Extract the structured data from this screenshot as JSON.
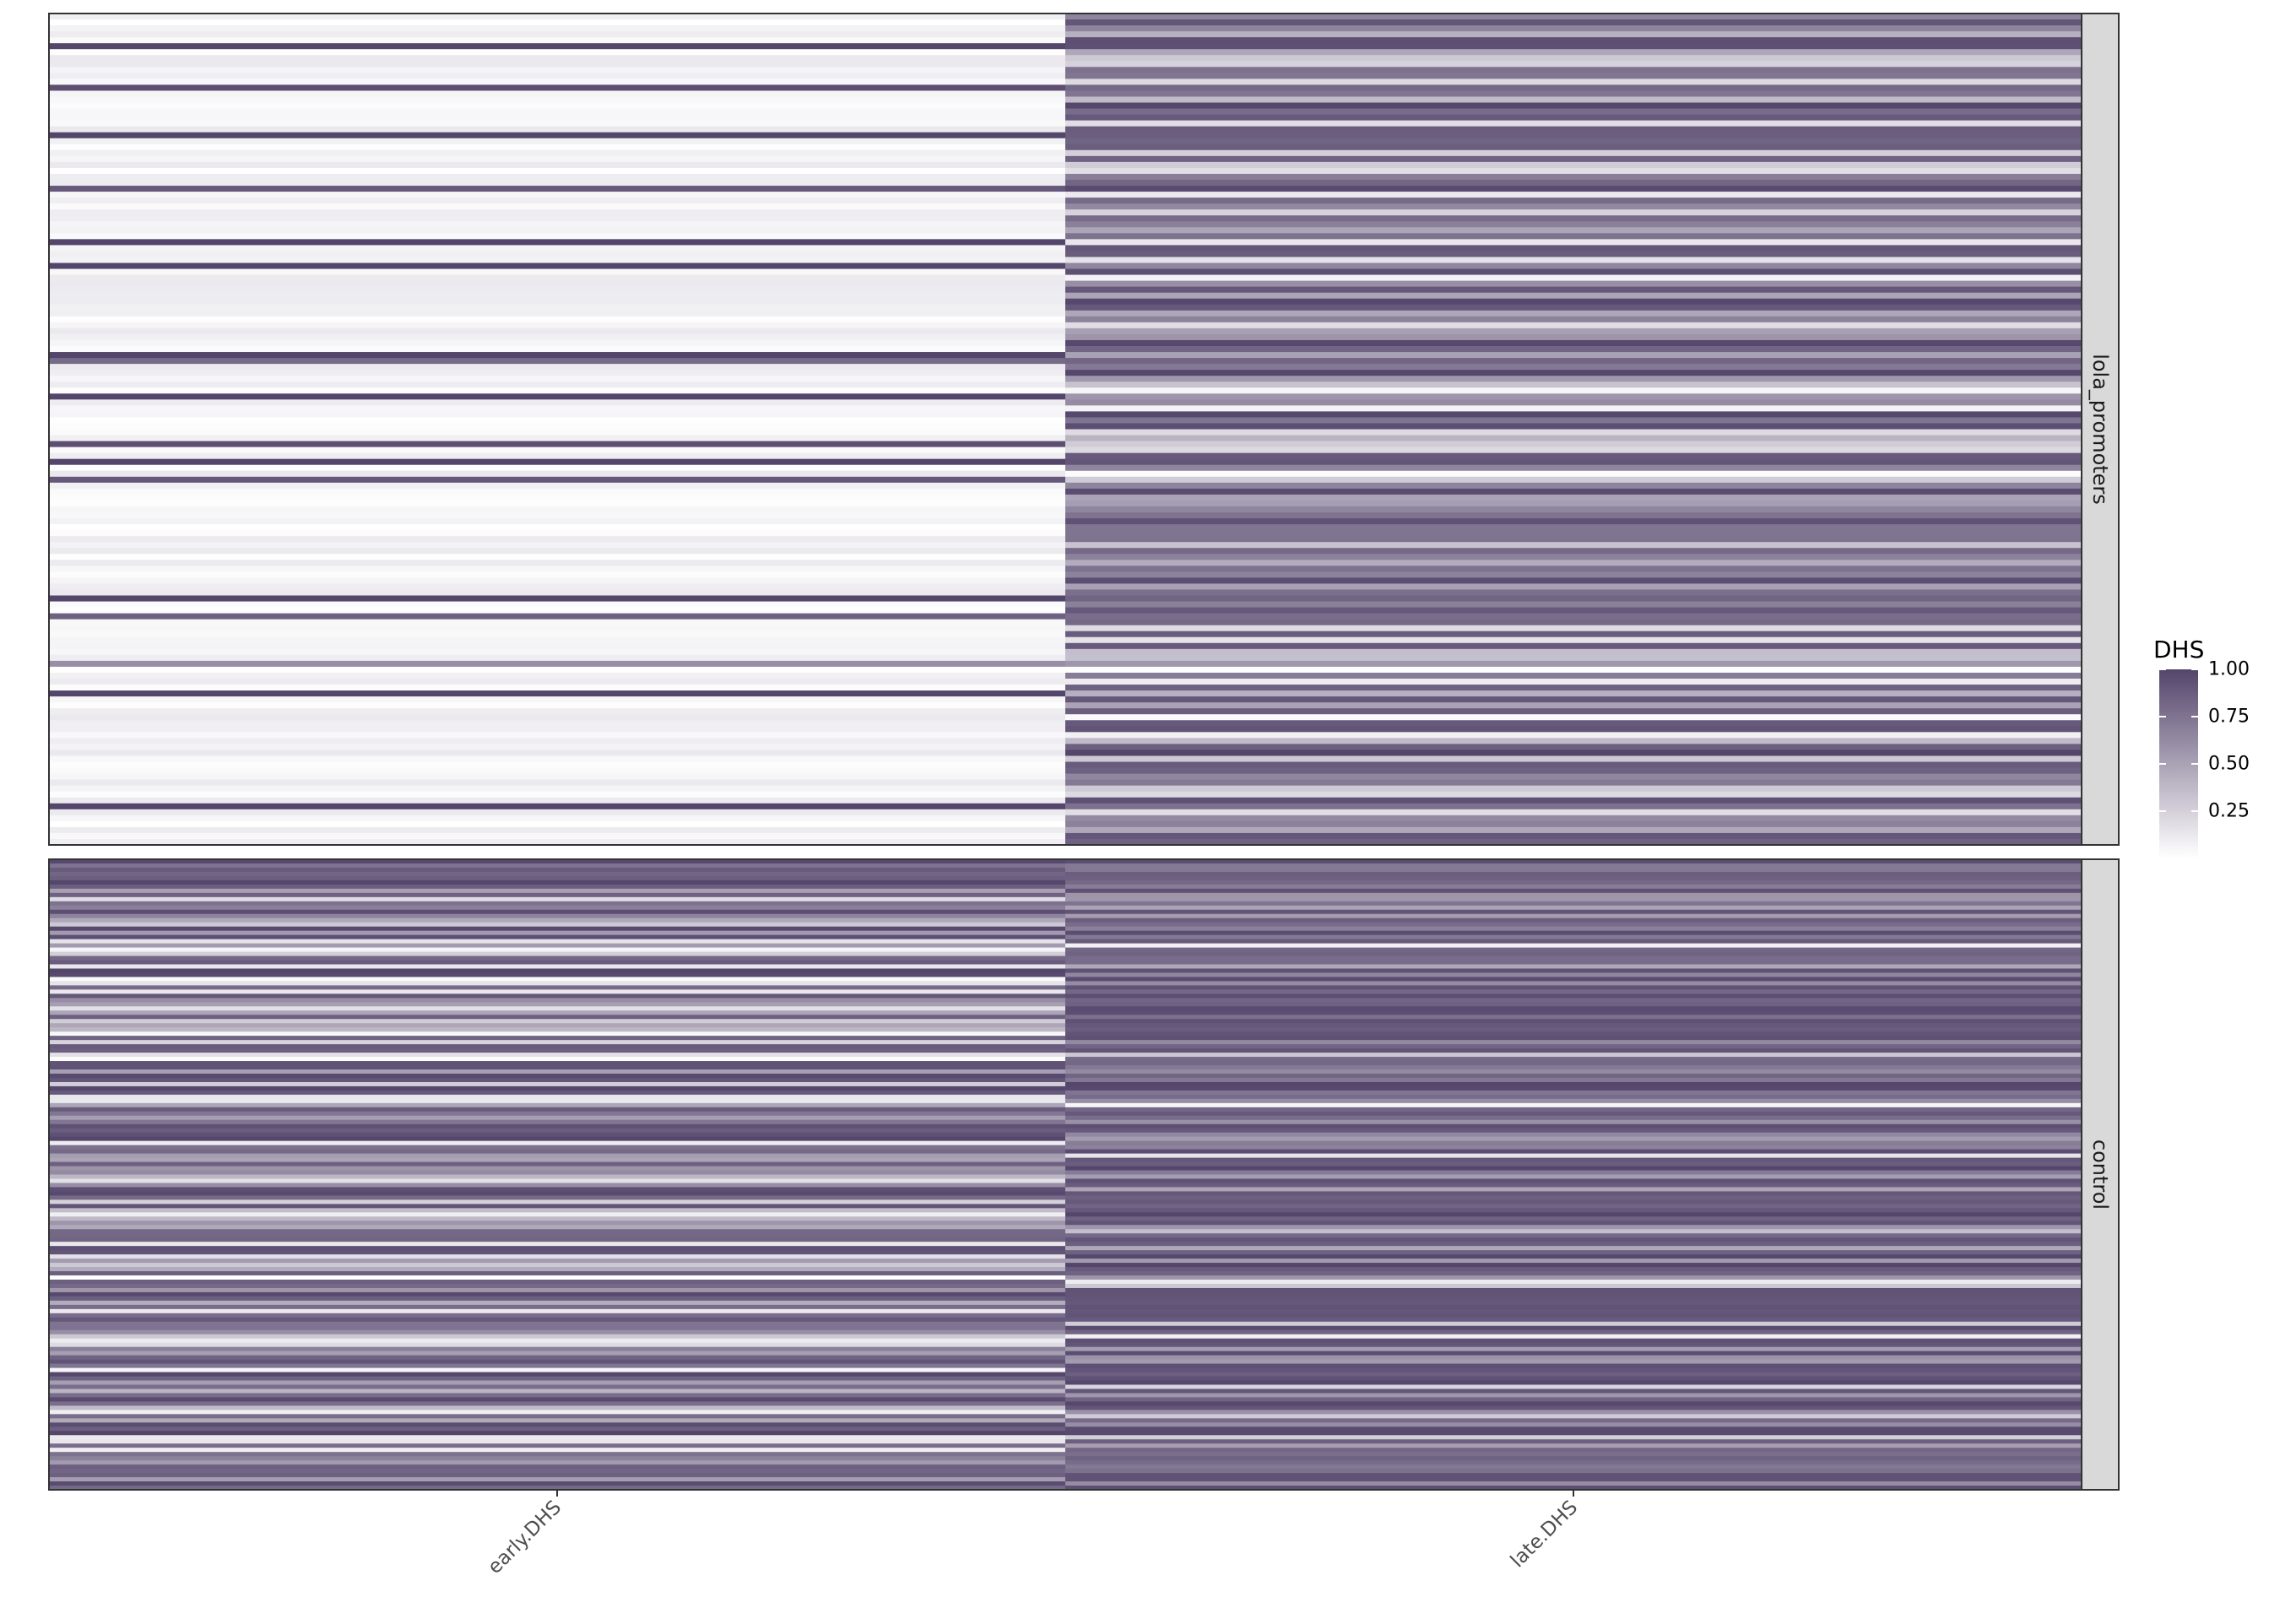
{
  "chart_data": {
    "type": "heatmap",
    "title": "",
    "xlabel": "",
    "ylabel": "",
    "categories": [
      "early.DHS",
      "late.DHS"
    ],
    "facets": [
      {
        "label": "lola_promoters",
        "rows": 140,
        "early_bands": [
          {
            "row": 5,
            "value": 1.0
          },
          {
            "row": 12,
            "value": 0.95
          },
          {
            "row": 20,
            "value": 1.0
          },
          {
            "row": 29,
            "value": 0.9
          },
          {
            "row": 38,
            "value": 1.0
          },
          {
            "row": 42,
            "value": 1.0
          },
          {
            "row": 57,
            "value": 1.0
          },
          {
            "row": 58,
            "value": 0.8
          },
          {
            "row": 64,
            "value": 1.0
          },
          {
            "row": 72,
            "value": 0.95
          },
          {
            "row": 75,
            "value": 1.0
          },
          {
            "row": 78,
            "value": 0.9
          },
          {
            "row": 98,
            "value": 1.0
          },
          {
            "row": 101,
            "value": 0.85
          },
          {
            "row": 109,
            "value": 0.6
          },
          {
            "row": 114,
            "value": 1.0
          },
          {
            "row": 133,
            "value": 1.0
          }
        ]
      },
      {
        "label": "control",
        "rows": 150
      }
    ],
    "legend": {
      "title": "DHS",
      "placement": "right",
      "ticks": [
        "1.00",
        "0.75",
        "0.50",
        "0.25"
      ],
      "tick_values": [
        1.0,
        0.75,
        0.5,
        0.25
      ],
      "range": [
        0,
        1
      ],
      "color_low": "#ffffff",
      "color_high": "#54456b"
    },
    "grid": false
  }
}
